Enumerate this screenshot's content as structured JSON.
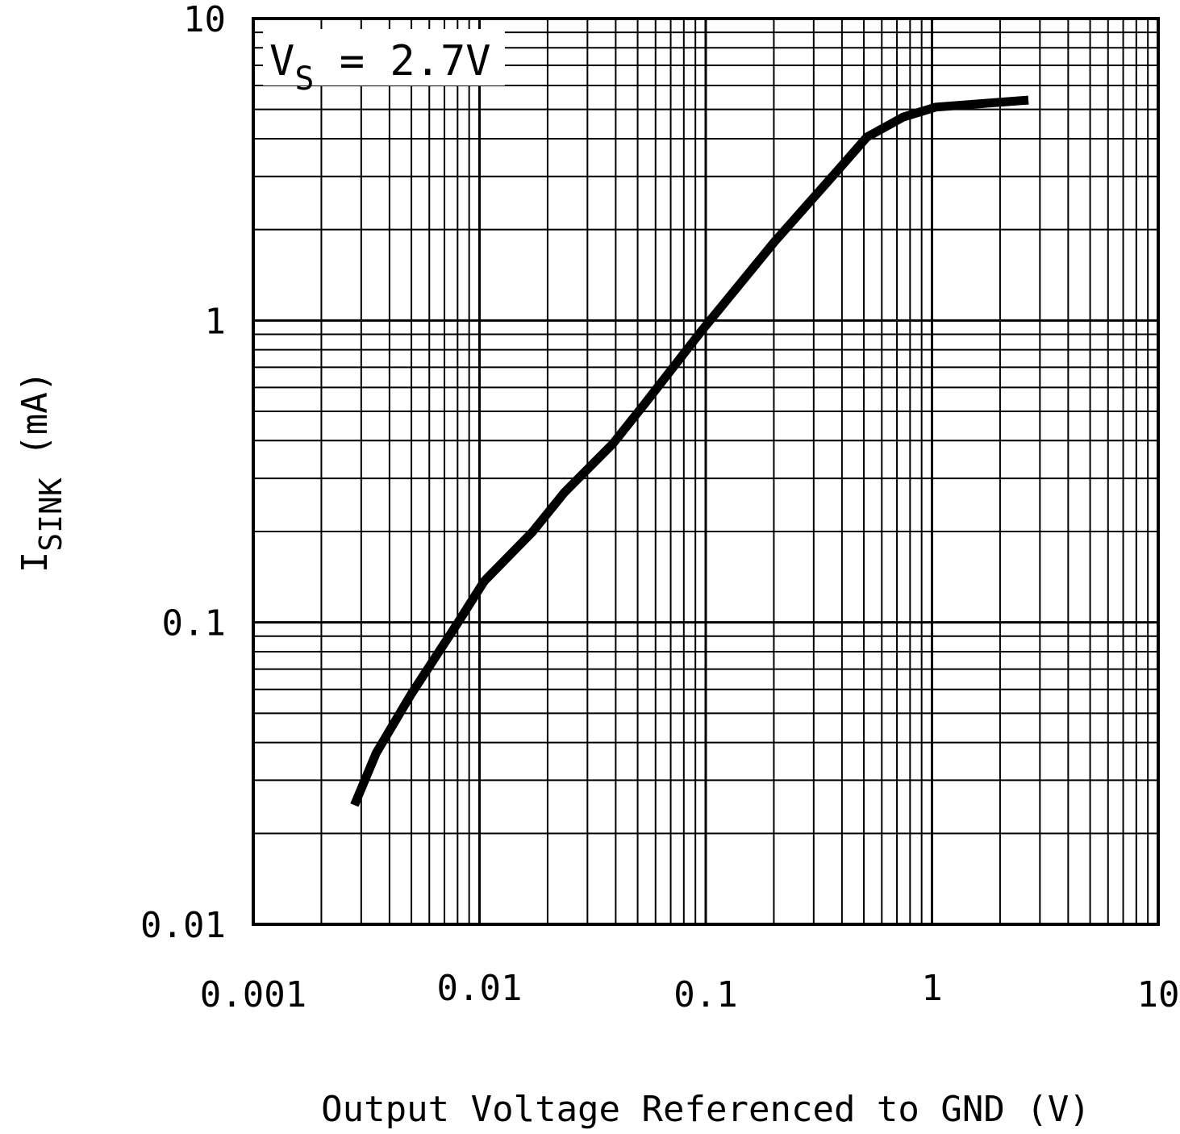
{
  "chart_data": {
    "type": "line",
    "title": "",
    "annotation": {
      "main": "V",
      "sub": "S",
      "rest": " = 2.7V"
    },
    "xlabel": "Output Voltage Referenced to GND (V)",
    "ylabel": {
      "main": "I",
      "sub": "SINK",
      "rest": " (mA)"
    },
    "xscale": "log",
    "yscale": "log",
    "xlim": [
      0.001,
      10
    ],
    "ylim": [
      0.01,
      10
    ],
    "grid": true,
    "xticks": [
      "0.001",
      "0.01",
      "0.1",
      "1",
      "10"
    ],
    "yticks": [
      "0.01",
      "0.1",
      "1",
      "10"
    ],
    "series": [
      {
        "color": "#000000",
        "x": [
          0.0028,
          0.0035,
          0.005,
          0.0079,
          0.0105,
          0.0171,
          0.0238,
          0.0389,
          0.054,
          0.096,
          0.201,
          0.387,
          0.516,
          0.747,
          1.04,
          2.67
        ],
        "y": [
          0.0248,
          0.037,
          0.058,
          0.098,
          0.137,
          0.199,
          0.27,
          0.391,
          0.532,
          0.925,
          1.82,
          3.17,
          4.05,
          4.72,
          5.09,
          5.37
        ]
      }
    ]
  }
}
